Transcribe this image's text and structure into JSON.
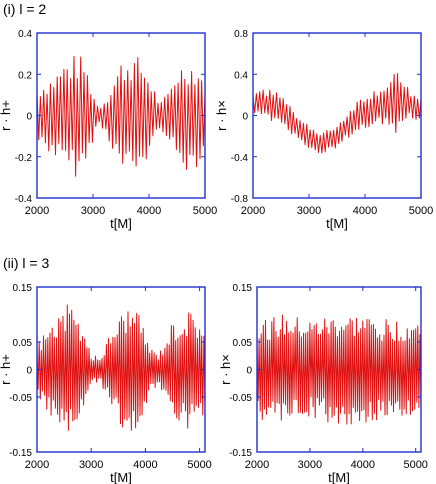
{
  "sections": [
    {
      "label": "(i)  l = 2"
    },
    {
      "label": "(ii)  l = 3"
    }
  ],
  "colors": {
    "frame": "#1f2fd0",
    "signal": "#e01010"
  },
  "chart_data": [
    {
      "type": "line",
      "xlabel": "t[M]",
      "ylabel": "r · h+",
      "xlim": [
        2000,
        5000
      ],
      "ylim": [
        -0.4,
        0.4
      ],
      "xticks": [
        2000,
        3000,
        4000,
        5000
      ],
      "yticks": [
        0.4,
        0.2,
        0,
        -0.2,
        -0.4
      ],
      "ytick_labels": [
        "0.4",
        "0.2",
        "0",
        "-0.2",
        "-0.4"
      ],
      "series": [
        {
          "x_start": 2000,
          "x_end": 5000,
          "period": 60,
          "envelope_t": [
            2000,
            2300,
            2500,
            2700,
            2850,
            3000,
            3100,
            3250,
            3500,
            3700,
            3850,
            4000,
            4200,
            4350,
            4500,
            4700,
            4850,
            5000
          ],
          "envelope_amp": [
            0.14,
            0.2,
            0.27,
            0.3,
            0.28,
            0.12,
            0.04,
            0.1,
            0.27,
            0.3,
            0.28,
            0.2,
            0.06,
            0.12,
            0.24,
            0.27,
            0.25,
            0.18
          ],
          "baseline_t": [
            2000,
            5000
          ],
          "baseline_v": [
            0,
            0
          ]
        }
      ]
    },
    {
      "type": "line",
      "xlabel": "t[M]",
      "ylabel": "r · h×",
      "xlim": [
        2000,
        5000
      ],
      "ylim": [
        -0.8,
        0.8
      ],
      "xticks": [
        2000,
        3000,
        4000,
        5000
      ],
      "yticks": [
        0.8,
        0.4,
        0,
        -0.4,
        -0.8
      ],
      "ytick_labels": [
        "0.8",
        "0.4",
        "0",
        "-0.4",
        "-0.8"
      ],
      "series": [
        {
          "x_start": 2000,
          "x_end": 5000,
          "period": 60,
          "envelope_t": [
            2000,
            2400,
            2800,
            3200,
            3600,
            4000,
            4400,
            4550,
            4800,
            5000
          ],
          "envelope_amp": [
            0.12,
            0.16,
            0.14,
            0.1,
            0.12,
            0.16,
            0.2,
            0.3,
            0.14,
            0.12
          ],
          "baseline_t": [
            2000,
            2400,
            2800,
            3200,
            3500,
            3900,
            4300,
            4700,
            5000
          ],
          "baseline_v": [
            0.12,
            0.1,
            -0.12,
            -0.28,
            -0.2,
            0.02,
            0.1,
            0.14,
            0.06
          ]
        }
      ]
    },
    {
      "type": "line",
      "xlabel": "t[M]",
      "ylabel": "r · h+",
      "xlim": [
        2000,
        5100
      ],
      "ylim": [
        -0.15,
        0.15
      ],
      "xticks": [
        2000,
        3000,
        4000,
        5000
      ],
      "yticks": [
        0.15,
        0.05,
        0,
        -0.05,
        -0.15
      ],
      "ytick_labels": [
        "0.15",
        "0.05",
        "0",
        "-0.05",
        "-0.15"
      ],
      "series": [
        {
          "x_start": 2000,
          "x_end": 5100,
          "period": 40,
          "envelope_t": [
            2000,
            2300,
            2550,
            2800,
            3000,
            3150,
            3400,
            3650,
            3900,
            4100,
            4250,
            4500,
            4800,
            5100
          ],
          "envelope_amp": [
            0.05,
            0.09,
            0.12,
            0.09,
            0.03,
            0.02,
            0.08,
            0.12,
            0.1,
            0.04,
            0.03,
            0.09,
            0.11,
            0.09
          ],
          "baseline_t": [
            2000,
            5100
          ],
          "baseline_v": [
            0,
            0
          ]
        }
      ]
    },
    {
      "type": "line",
      "xlabel": "t[M]",
      "ylabel": "r · h×",
      "xlim": [
        2000,
        5100
      ],
      "ylim": [
        -0.15,
        0.15
      ],
      "xticks": [
        2000,
        3000,
        4000,
        5000
      ],
      "yticks": [
        0.15,
        0.05,
        0,
        -0.05,
        -0.15
      ],
      "ytick_labels": [
        "0.15",
        "0.05",
        "0",
        "-0.05",
        "-0.15"
      ],
      "series": [
        {
          "x_start": 2000,
          "x_end": 5100,
          "period": 40,
          "envelope_t": [
            2000,
            2500,
            3000,
            3500,
            4000,
            4500,
            5100
          ],
          "envelope_amp": [
            0.09,
            0.1,
            0.09,
            0.1,
            0.1,
            0.09,
            0.09
          ],
          "baseline_t": [
            2000,
            5100
          ],
          "baseline_v": [
            0,
            0
          ]
        }
      ]
    }
  ]
}
